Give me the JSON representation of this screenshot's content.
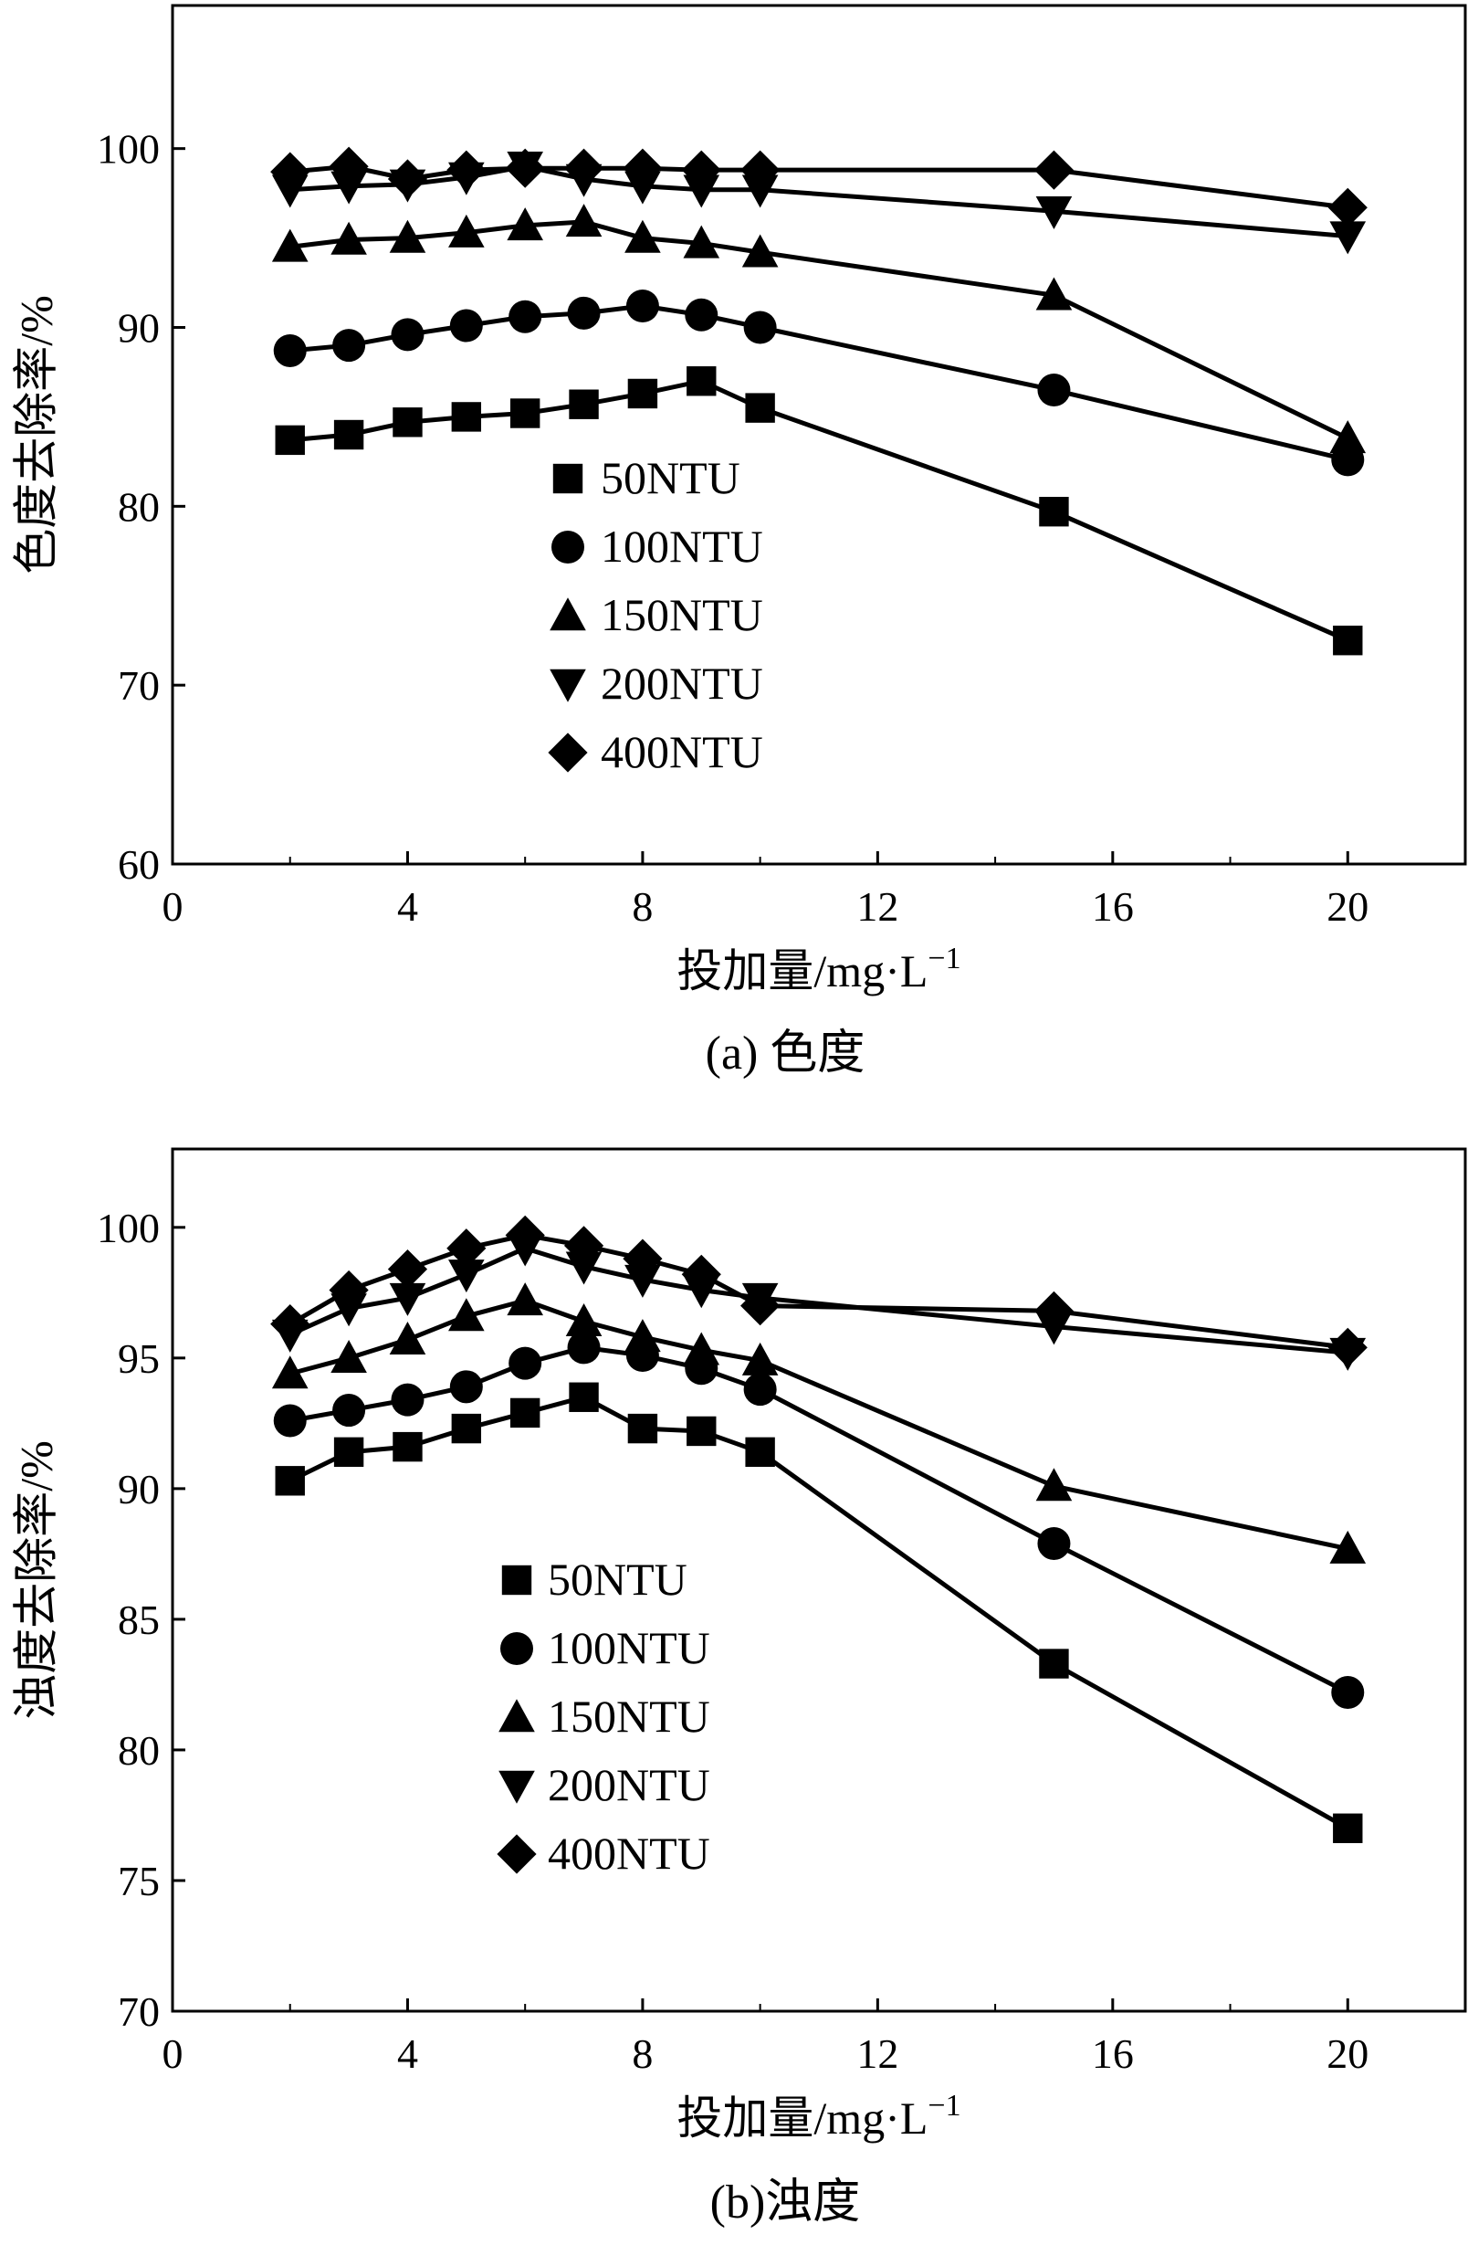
{
  "chart_data": [
    {
      "type": "line",
      "caption": "(a) 色度",
      "xlabel": "投加量/mg·L",
      "xlabel_sup": "−1",
      "ylabel": "色度去除率/%",
      "xlim": [
        0,
        22
      ],
      "ylim": [
        60,
        108
      ],
      "xticks": [
        0,
        4,
        8,
        12,
        16,
        20
      ],
      "yticks": [
        60,
        70,
        80,
        90,
        100
      ],
      "grid": false,
      "legend_position": "center-left",
      "x": [
        2,
        3,
        4,
        5,
        6,
        7,
        8,
        9,
        10,
        15,
        20
      ],
      "series": [
        {
          "name": "50NTU",
          "marker": "square",
          "values": [
            83.7,
            84.0,
            84.7,
            85.0,
            85.2,
            85.7,
            86.3,
            87.0,
            85.5,
            79.7,
            72.5
          ]
        },
        {
          "name": "100NTU",
          "marker": "circle",
          "values": [
            88.7,
            89.0,
            89.6,
            90.1,
            90.6,
            90.8,
            91.2,
            90.7,
            90.0,
            86.5,
            82.6
          ]
        },
        {
          "name": "150NTU",
          "marker": "triangle-up",
          "values": [
            94.5,
            94.9,
            95.0,
            95.3,
            95.7,
            95.9,
            95.0,
            94.7,
            94.2,
            91.8,
            83.8
          ]
        },
        {
          "name": "200NTU",
          "marker": "triangle-down",
          "values": [
            97.7,
            97.9,
            98.0,
            98.4,
            99.0,
            98.3,
            97.9,
            97.7,
            97.7,
            96.5,
            95.1
          ]
        },
        {
          "name": "400NTU",
          "marker": "diamond",
          "values": [
            98.7,
            99.0,
            98.3,
            98.8,
            98.9,
            98.9,
            98.9,
            98.8,
            98.8,
            98.8,
            96.7
          ]
        }
      ]
    },
    {
      "type": "line",
      "caption": "(b)浊度",
      "xlabel": "投加量/mg·L",
      "xlabel_sup": "−1",
      "ylabel": "浊度去除率/%",
      "xlim": [
        0,
        22
      ],
      "ylim": [
        70,
        103
      ],
      "xticks": [
        0,
        4,
        8,
        12,
        16,
        20
      ],
      "yticks": [
        70,
        75,
        80,
        85,
        90,
        95,
        100
      ],
      "grid": false,
      "legend_position": "center-left",
      "x": [
        2,
        3,
        4,
        5,
        6,
        7,
        8,
        9,
        10,
        15,
        20
      ],
      "series": [
        {
          "name": "50NTU",
          "marker": "square",
          "values": [
            90.3,
            91.4,
            91.6,
            92.3,
            92.9,
            93.5,
            92.3,
            92.2,
            91.4,
            83.3,
            77.0
          ]
        },
        {
          "name": "100NTU",
          "marker": "circle",
          "values": [
            92.6,
            93.0,
            93.4,
            93.9,
            94.8,
            95.4,
            95.1,
            94.6,
            93.8,
            87.9,
            82.2
          ]
        },
        {
          "name": "150NTU",
          "marker": "triangle-up",
          "values": [
            94.4,
            95.0,
            95.7,
            96.6,
            97.2,
            96.4,
            95.8,
            95.3,
            94.9,
            90.1,
            87.7
          ]
        },
        {
          "name": "200NTU",
          "marker": "triangle-down",
          "values": [
            95.9,
            96.9,
            97.3,
            98.2,
            99.2,
            98.5,
            98.0,
            97.6,
            97.3,
            96.2,
            95.2
          ]
        },
        {
          "name": "400NTU",
          "marker": "diamond",
          "values": [
            96.3,
            97.6,
            98.4,
            99.2,
            99.7,
            99.3,
            98.8,
            98.2,
            97.0,
            96.8,
            95.4
          ]
        }
      ]
    }
  ]
}
